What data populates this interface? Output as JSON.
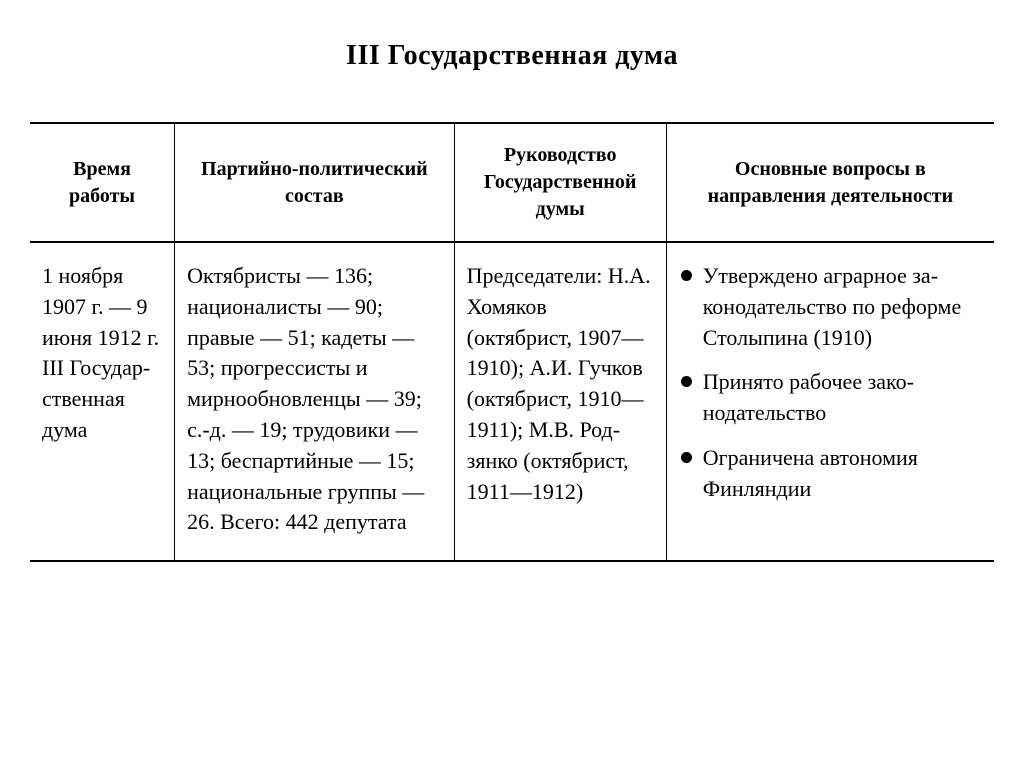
{
  "title": "III Государственная дума",
  "table": {
    "columns": [
      "Время работы",
      "Партийно-политический состав",
      "Руководство Государственной думы",
      "Основные вопросы в направления деятельности"
    ],
    "row": {
      "time": "1 ноября 1907 г. — 9 июня 1912 г. III Государ­ственная дума",
      "party": "Октябристы — 136; национали­сты — 90; правые — 51; кадеты — 53; прогрес­систы и мирнообновлен­цы — 39; с.-д. — 19; трудо­вики — 13; беспартий­ные — 15; национальные группы — 26. Всего: 442 депутата",
      "leadership": "Председатели: Н.А. Хомяков (октябрист, 1907—1910); А.И. Гучков (ок­тябрист, 1910—1911); М.В. Род­зянко (октябрист, 1911—1912)",
      "issues": [
        "Утверждено аграрное за­конодательство по ре­форме Столыпина (1910)",
        "Принято рабочее зако­нодательство",
        "Ограничена автономия Финляндии"
      ]
    }
  },
  "style": {
    "background_color": "#ffffff",
    "text_color": "#000000",
    "border_color": "#000000",
    "title_fontsize": 28,
    "header_fontsize": 20,
    "body_fontsize": 22,
    "font_family": "Times New Roman"
  }
}
